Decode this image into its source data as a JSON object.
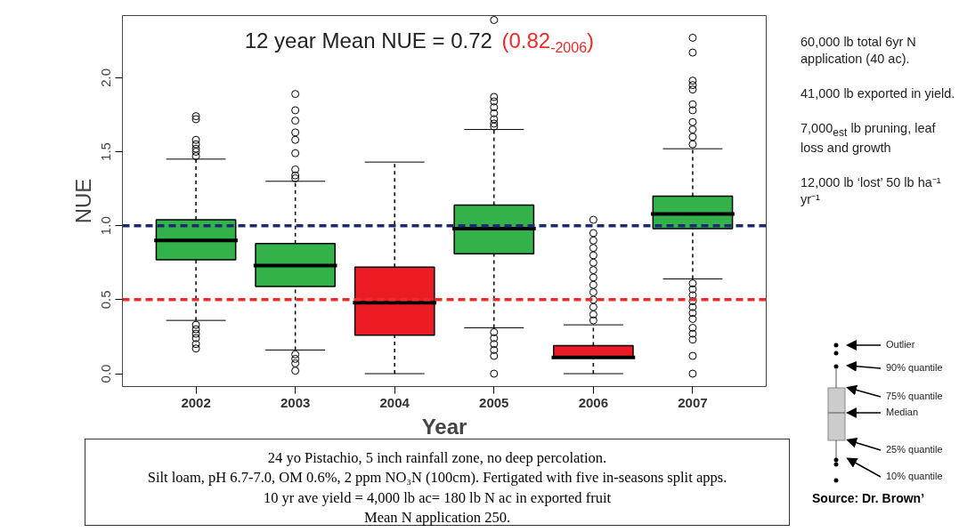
{
  "chart_data": {
    "type": "box",
    "xlabel": "Year",
    "ylabel": "NUE",
    "categories": [
      "2002",
      "2003",
      "2004",
      "2005",
      "2006",
      "2007"
    ],
    "colors": [
      "#33b24a",
      "#33b24a",
      "#ec1c24",
      "#33b24a",
      "#ec1c24",
      "#33b24a"
    ],
    "boxes": [
      {
        "low": 0.36,
        "q1": 0.77,
        "median": 0.9,
        "q3": 1.04,
        "high": 1.45,
        "outliers": [
          1.74,
          1.72,
          1.58,
          1.55,
          1.52,
          1.5,
          1.47,
          0.33,
          0.3,
          0.27,
          0.24,
          0.2,
          0.17
        ]
      },
      {
        "low": 0.16,
        "q1": 0.59,
        "median": 0.73,
        "q3": 0.88,
        "high": 1.3,
        "outliers": [
          1.89,
          1.78,
          1.71,
          1.63,
          1.58,
          1.49,
          1.38,
          1.34,
          1.32,
          0.13,
          0.1,
          0.07,
          0.02
        ]
      },
      {
        "low": 0.0,
        "q1": 0.26,
        "median": 0.48,
        "q3": 0.72,
        "high": 1.43
      },
      {
        "low": 0.31,
        "q1": 0.81,
        "median": 0.98,
        "q3": 1.14,
        "high": 1.65,
        "outliers": [
          2.39,
          1.87,
          1.84,
          1.8,
          1.76,
          1.72,
          1.69,
          1.67,
          0.28,
          0.24,
          0.2,
          0.16,
          0.12,
          0.0
        ]
      },
      {
        "low": 0.0,
        "q1": 0.11,
        "median": 0.11,
        "q3": 0.19,
        "high": 0.33,
        "outliers": [
          1.04,
          0.95,
          0.9,
          0.85,
          0.8,
          0.75,
          0.7,
          0.65,
          0.6,
          0.55,
          0.5,
          0.45,
          0.4,
          0.36
        ]
      },
      {
        "low": 0.64,
        "q1": 0.98,
        "median": 1.08,
        "q3": 1.2,
        "high": 1.52,
        "outliers": [
          2.27,
          2.17,
          1.98,
          1.95,
          1.92,
          1.82,
          1.78,
          1.7,
          1.65,
          1.6,
          1.55,
          0.61,
          0.57,
          0.53,
          0.49,
          0.45,
          0.41,
          0.37,
          0.31,
          0.27,
          0.23,
          0.12,
          0.0
        ]
      }
    ],
    "ylim": [
      -0.087,
      2.42
    ],
    "yticks": [
      {
        "value": 0,
        "label": "0.0"
      },
      {
        "value": 0.5,
        "label": "0.5"
      },
      {
        "value": 1,
        "label": "1.0"
      },
      {
        "value": 1.5,
        "label": "1.5"
      },
      {
        "value": 2,
        "label": "2.0"
      }
    ],
    "ref_lines": [
      {
        "axis": "y",
        "value": 1.0,
        "color": "#1f2a6e",
        "line_style": "dashed"
      },
      {
        "axis": "y",
        "value": 0.5,
        "color": "#ee2a2a",
        "line_style": "dashed"
      }
    ],
    "grid": false,
    "annotations": [
      "12 year Mean NUE  = 0.72",
      "(0.82$_{-2006}$)",
      "60,000 lb total 6yr N application (40 ac).",
      "41,000 lb exported in yield.",
      "7,000$_{est}$ lb pruning, leaf loss and growth",
      "12,000 lb ‘lost’ 50 lb ha⁻¹ yr⁻¹",
      "24 yo Pistachio, 5 inch rainfall zone, no deep percolation.",
      "Silt  loam, pH 6.7-7.0, OM 0.6%, 2 ppm NO₃N (100cm). Fertigated with five in-seasons split apps.",
      "10 yr ave yield = 4,000 lb ac= 180 lb N ac in exported fruit",
      "Mean N application 250.",
      "Outlier",
      "90% quantile",
      "75% quantile",
      "Median",
      "25% quantile",
      "10% quantile",
      "Source: Dr. Brown’"
    ]
  }
}
